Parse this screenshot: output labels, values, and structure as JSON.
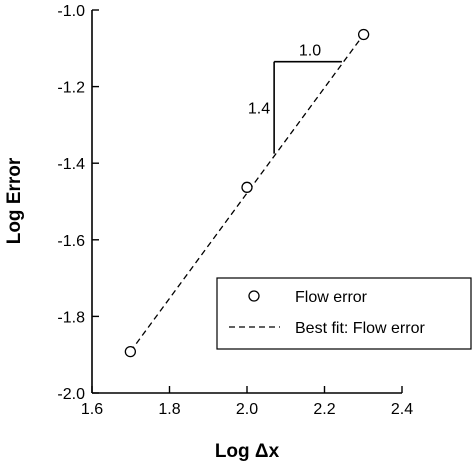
{
  "chart_data": {
    "type": "scatter",
    "xlabel": "Log Δx",
    "ylabel": "Log Error",
    "xlim": [
      1.6,
      2.4
    ],
    "ylim": [
      -2.0,
      -1.0
    ],
    "x_ticks": [
      1.6,
      1.8,
      2.0,
      2.2,
      2.4
    ],
    "y_ticks": [
      -2.0,
      -1.8,
      -1.6,
      -1.4,
      -1.2,
      -1.0
    ],
    "x_tick_labels": [
      "1.6",
      "1.8",
      "2.0",
      "2.2",
      "2.4"
    ],
    "y_tick_labels": [
      "-2.0",
      "-1.8",
      "-1.6",
      "-1.4",
      "-1.2",
      "-1.0"
    ],
    "grid": false,
    "legend_position": "bottom-right",
    "series": [
      {
        "name": "Flow error",
        "kind": "scatter",
        "marker": "open-circle",
        "x": [
          1.699,
          2.0,
          2.301
        ],
        "y": [
          -1.892,
          -1.463,
          -1.064
        ]
      },
      {
        "name": "Best fit: Flow error",
        "kind": "line",
        "style": "dashed",
        "x": [
          1.699,
          2.301
        ],
        "y": [
          -1.892,
          -1.064
        ]
      }
    ],
    "slope_triangle": {
      "x": [
        2.07,
        2.245
      ],
      "y": [
        -1.375,
        -1.135
      ],
      "run_label": "1.0",
      "rise_label": "1.4"
    }
  }
}
